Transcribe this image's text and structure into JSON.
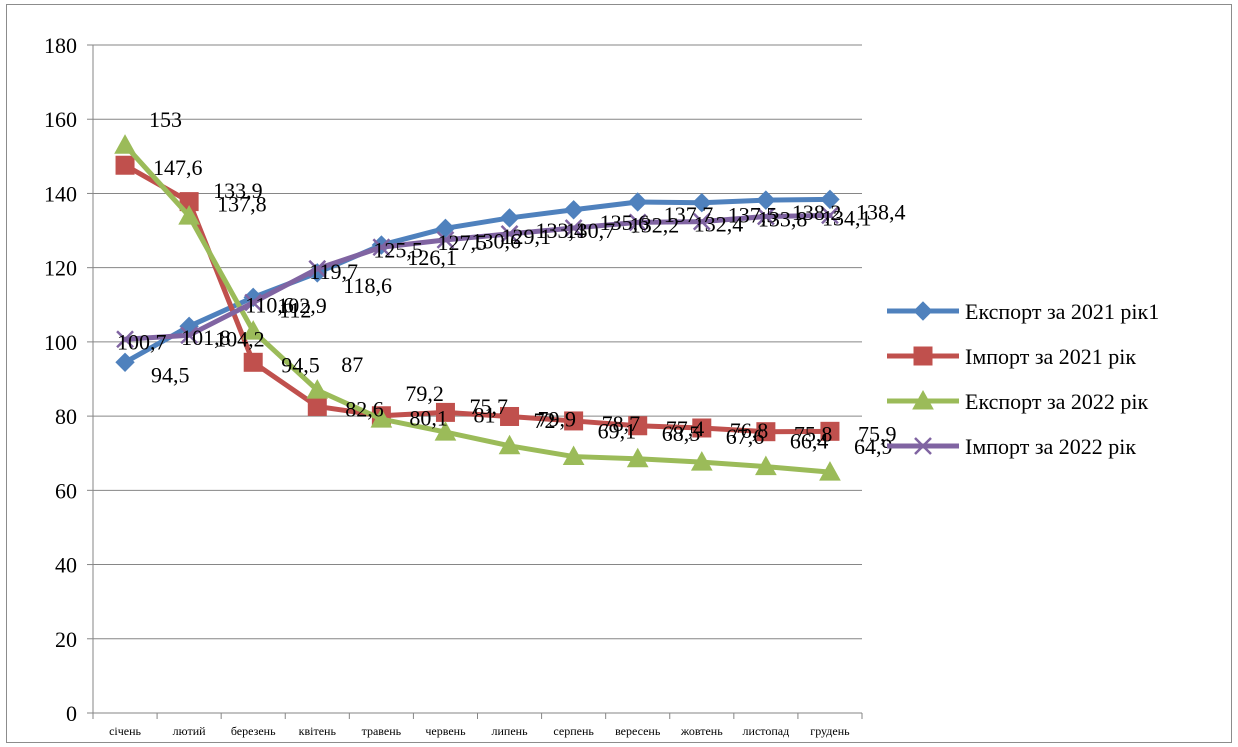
{
  "chart_data": {
    "type": "line",
    "categories": [
      "січень",
      "лютий",
      "березень",
      "квітень",
      "травень",
      "червень",
      "липень",
      "серпень",
      "вересень",
      "жовтень",
      "листопад",
      "грудень"
    ],
    "ylim": [
      0,
      180
    ],
    "yticks": [
      "0",
      "20",
      "40",
      "60",
      "80",
      "100",
      "120",
      "140",
      "160",
      "180"
    ],
    "grid": true,
    "legend_position": "right",
    "series": [
      {
        "name": "Експорт за 2021 рік1",
        "color": "#4f81bd",
        "marker": "diamond",
        "values": [
          94.5,
          104.2,
          112,
          118.6,
          126.1,
          130.6,
          133.4,
          135.6,
          137.7,
          137.5,
          138.2,
          138.4
        ],
        "labels": [
          "94,5",
          "104,2",
          "112",
          "118,6",
          "126,1",
          "130,6",
          "133,4",
          "135,6",
          "137,7",
          "137,5",
          "138,2",
          "138,4"
        ]
      },
      {
        "name": "Імпорт за 2021 рік",
        "color": "#c0504d",
        "marker": "square",
        "values": [
          147.6,
          137.8,
          94.5,
          82.6,
          80.1,
          81,
          79.9,
          78.7,
          77.4,
          76.8,
          75.8,
          75.9
        ],
        "labels": [
          "147,6",
          "137,8",
          "94,5",
          "82,6",
          "80,1",
          "81",
          "79,9",
          "78,7",
          "77,4",
          "76,8",
          "75,8",
          "75,9"
        ]
      },
      {
        "name": "Експорт за 2022 рік",
        "color": "#9bbb59",
        "marker": "triangle",
        "values": [
          153,
          133.9,
          102.9,
          87,
          79.2,
          75.7,
          72,
          69.1,
          68.5,
          67.6,
          66.4,
          64.9
        ],
        "labels": [
          "153",
          "133,9",
          "102,9",
          "87",
          "79,2",
          "75,7",
          "72",
          "69,1",
          "68,5",
          "67,6",
          "66,4",
          "64,9"
        ]
      },
      {
        "name": "Імпорт за 2022 рік",
        "color": "#8064a2",
        "marker": "x",
        "values": [
          100.7,
          101.8,
          110.6,
          119.7,
          125.5,
          127.5,
          129.1,
          130.7,
          132.2,
          132.4,
          133.8,
          134.1
        ],
        "labels": [
          "100,7",
          "101,8",
          "110,6",
          "119,7",
          "125,5",
          "127,5",
          "129,1",
          "130,7",
          "132,2",
          "132,4",
          "133,8",
          "134,1"
        ]
      }
    ]
  }
}
